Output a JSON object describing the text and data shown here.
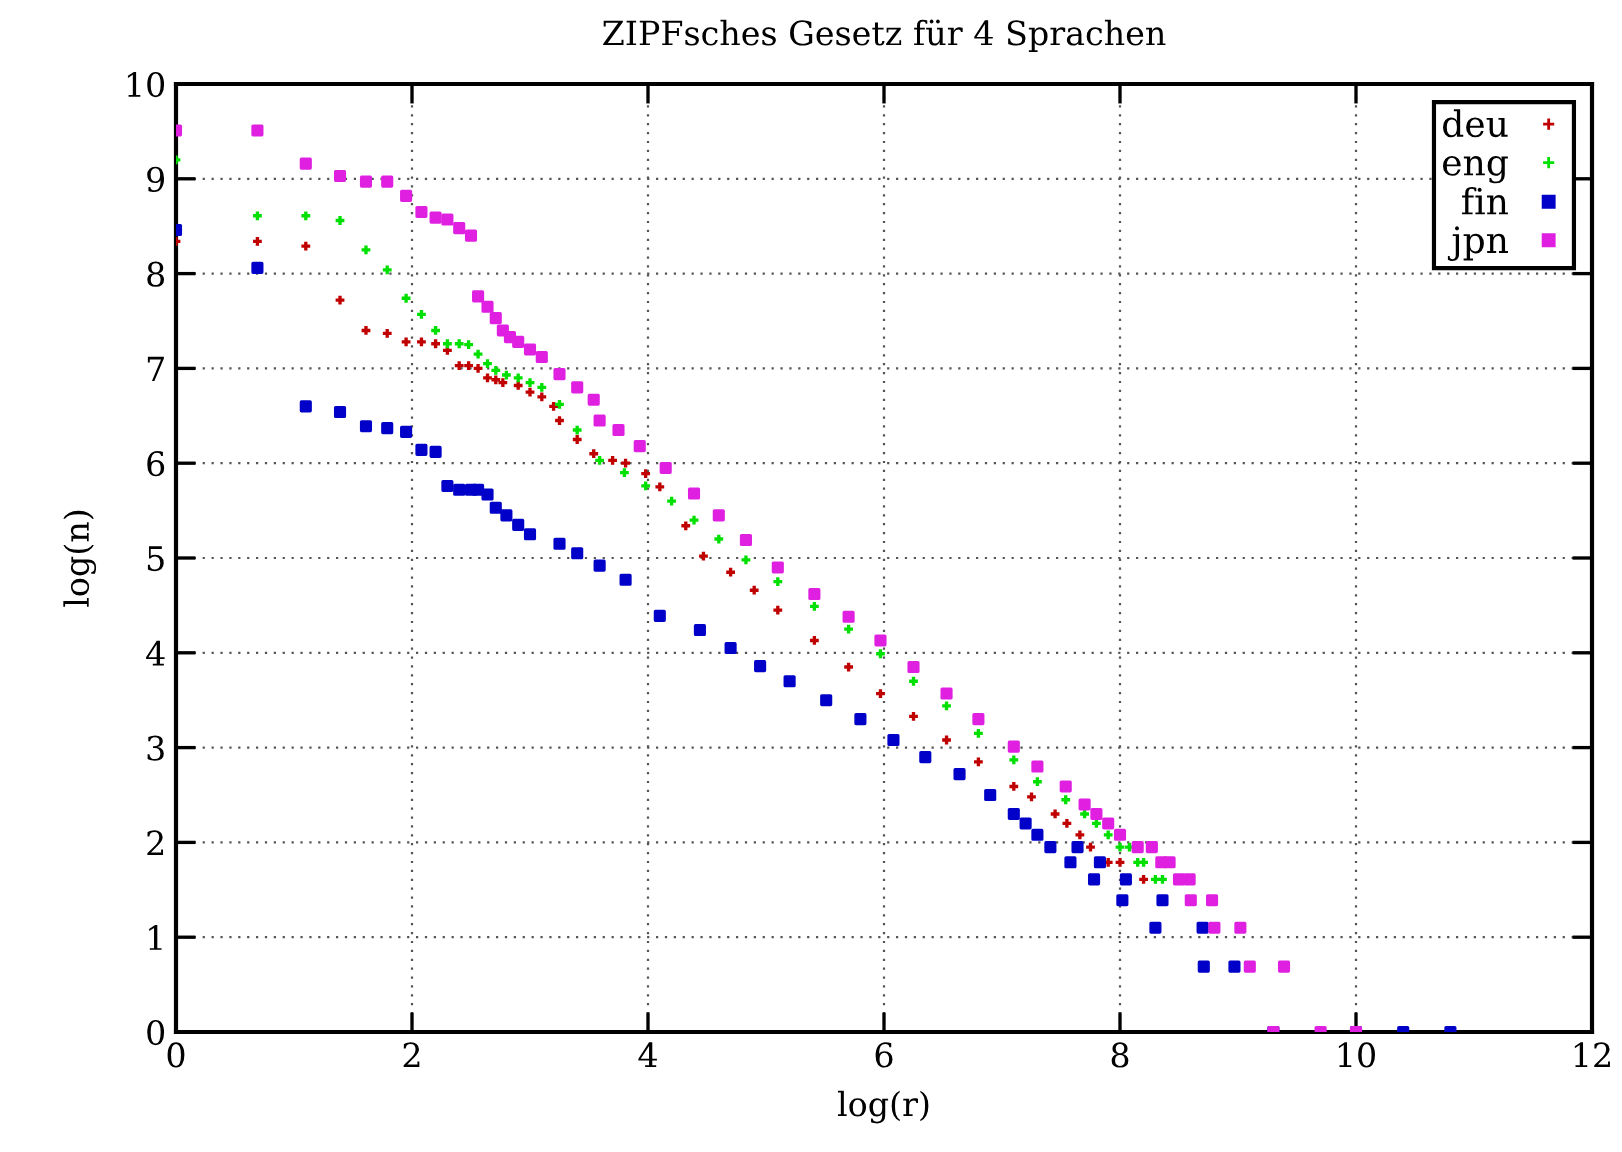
{
  "chart_data": {
    "type": "scatter",
    "title": "ZIPFsches Gesetz für 4 Sprachen",
    "xlabel": "log(r)",
    "ylabel": "log(n)",
    "xlim": [
      0,
      12
    ],
    "xticks": [
      0,
      2,
      4,
      6,
      8,
      10,
      12
    ],
    "ylim": [
      0,
      10
    ],
    "yticks": [
      0,
      1,
      2,
      3,
      4,
      5,
      6,
      7,
      8,
      9,
      10
    ],
    "grid": true,
    "legend": "top right",
    "series": [
      {
        "name": "deu",
        "color": "#c00000",
        "marker": "cross",
        "x": [
          0,
          0.69,
          1.1,
          1.39,
          1.61,
          1.79,
          1.95,
          2.08,
          2.2,
          2.3,
          2.4,
          2.48,
          2.56,
          2.64,
          2.71,
          2.77,
          2.9,
          3.0,
          3.1,
          3.2,
          3.25,
          3.4,
          3.54,
          3.7,
          3.81,
          3.98,
          4.1,
          4.2,
          4.32,
          4.47,
          4.7,
          4.9,
          5.1,
          5.41,
          5.7,
          5.97,
          6.25,
          6.53,
          6.8,
          7.1,
          7.25,
          7.45,
          7.55,
          7.66,
          7.75,
          7.9,
          8.0,
          8.1,
          8.2
        ],
        "values": [
          8.34,
          8.34,
          8.29,
          7.72,
          7.4,
          7.37,
          7.28,
          7.28,
          7.26,
          7.19,
          7.03,
          7.03,
          7.0,
          6.9,
          6.88,
          6.85,
          6.82,
          6.75,
          6.7,
          6.6,
          6.45,
          6.25,
          6.1,
          6.03,
          6.0,
          5.89,
          5.75,
          null,
          5.34,
          5.02,
          4.85,
          4.66,
          4.45,
          4.13,
          3.85,
          3.57,
          3.33,
          3.08,
          2.85,
          2.59,
          2.48,
          2.3,
          2.2,
          2.08,
          1.95,
          1.79,
          1.79,
          null,
          1.61
        ]
      },
      {
        "name": "eng",
        "color": "#00e000",
        "marker": "cross",
        "x": [
          0,
          0.69,
          1.1,
          1.39,
          1.61,
          1.79,
          1.95,
          2.08,
          2.2,
          2.3,
          2.4,
          2.48,
          2.56,
          2.64,
          2.71,
          2.8,
          2.9,
          3.0,
          3.1,
          3.25,
          3.4,
          3.59,
          3.8,
          3.98,
          4.2,
          4.39,
          4.6,
          4.83,
          5.1,
          5.41,
          5.7,
          5.97,
          6.25,
          6.53,
          6.8,
          7.1,
          7.3,
          7.54,
          7.7,
          7.8,
          7.9,
          8.0,
          8.08,
          8.15,
          8.2,
          8.3,
          8.36
        ],
        "values": [
          9.2,
          8.61,
          8.61,
          8.56,
          8.25,
          8.04,
          7.74,
          7.57,
          7.4,
          7.26,
          7.26,
          7.25,
          7.15,
          7.05,
          6.98,
          6.93,
          6.9,
          6.85,
          6.8,
          6.62,
          6.35,
          6.03,
          5.9,
          5.76,
          5.6,
          5.4,
          5.2,
          4.98,
          4.75,
          4.49,
          4.25,
          3.99,
          3.7,
          3.44,
          3.15,
          2.87,
          2.64,
          2.45,
          2.3,
          2.2,
          2.08,
          1.95,
          1.95,
          1.79,
          1.79,
          1.61,
          1.61
        ]
      },
      {
        "name": "fin",
        "color": "#0000c8",
        "marker": "square",
        "x": [
          0,
          0.69,
          1.1,
          1.39,
          1.61,
          1.79,
          1.95,
          2.08,
          2.2,
          2.3,
          2.4,
          2.5,
          2.56,
          2.64,
          2.71,
          2.8,
          2.9,
          3.0,
          3.25,
          3.4,
          3.59,
          3.81,
          4.1,
          4.44,
          4.7,
          4.95,
          5.2,
          5.51,
          5.8,
          6.08,
          6.35,
          6.64,
          6.9,
          7.1,
          7.2,
          7.3,
          7.41,
          7.64,
          7.58,
          7.83,
          7.78,
          8.05,
          8.02,
          8.36,
          8.3,
          8.7,
          8.71,
          8.97,
          9.3,
          10.0,
          10.4,
          10.8
        ],
        "values": [
          8.46,
          8.06,
          6.6,
          6.54,
          6.39,
          6.37,
          6.33,
          6.14,
          6.12,
          5.76,
          5.72,
          5.72,
          5.72,
          5.67,
          5.53,
          5.45,
          5.35,
          5.25,
          5.15,
          5.05,
          4.92,
          4.77,
          4.39,
          4.24,
          4.05,
          3.86,
          3.7,
          3.5,
          3.3,
          3.08,
          2.9,
          2.72,
          2.5,
          2.3,
          2.2,
          2.08,
          1.95,
          1.95,
          1.79,
          1.79,
          1.61,
          1.61,
          1.39,
          1.39,
          1.1,
          1.1,
          0.69,
          0.69,
          0,
          0,
          0,
          0
        ]
      },
      {
        "name": "jpn",
        "color": "#e020e0",
        "marker": "square",
        "x": [
          0,
          0.69,
          1.1,
          1.39,
          1.61,
          1.79,
          1.95,
          2.08,
          2.2,
          2.3,
          2.4,
          2.5,
          2.56,
          2.64,
          2.71,
          2.77,
          2.83,
          2.9,
          3.0,
          3.1,
          3.25,
          3.4,
          3.54,
          3.59,
          3.75,
          3.93,
          4.15,
          4.39,
          4.6,
          4.83,
          5.1,
          5.41,
          5.7,
          5.97,
          6.25,
          6.53,
          6.8,
          7.1,
          7.3,
          7.54,
          7.7,
          7.8,
          7.9,
          8.0,
          8.15,
          8.27,
          8.35,
          8.42,
          8.5,
          8.59,
          8.6,
          8.78,
          8.8,
          9.02,
          9.1,
          9.39,
          9.3,
          9.7,
          10.0
        ],
        "values": [
          9.51,
          9.51,
          9.16,
          9.03,
          8.97,
          8.97,
          8.82,
          8.65,
          8.59,
          8.57,
          8.48,
          8.4,
          7.76,
          7.65,
          7.53,
          7.4,
          7.33,
          7.28,
          7.2,
          7.12,
          6.94,
          6.8,
          6.67,
          6.45,
          6.35,
          6.18,
          5.95,
          5.68,
          5.45,
          5.19,
          4.9,
          4.62,
          4.38,
          4.13,
          3.85,
          3.57,
          3.3,
          3.01,
          2.8,
          2.59,
          2.4,
          2.3,
          2.2,
          2.08,
          1.95,
          1.95,
          1.79,
          1.79,
          1.61,
          1.61,
          1.39,
          1.39,
          1.1,
          1.1,
          0.69,
          0.69,
          0,
          0,
          0
        ]
      }
    ]
  }
}
